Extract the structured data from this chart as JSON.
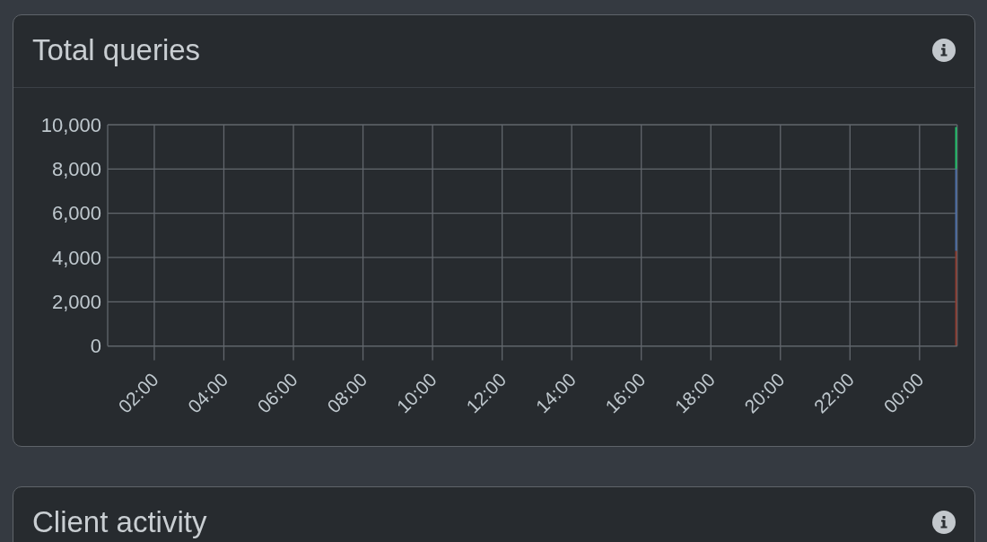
{
  "chart_data": [
    {
      "type": "bar",
      "title": "Total queries",
      "x": [
        25.05
      ],
      "series": [
        {
          "color": "#8e3a2e",
          "values": [
            4300
          ]
        },
        {
          "color": "#4b6ea8",
          "values": [
            3700
          ]
        },
        {
          "color": "#1dc36a",
          "values": [
            1900
          ]
        }
      ],
      "stacked": true,
      "xlim": [
        0.66,
        25.08
      ],
      "xticks": [
        {
          "value": 2,
          "label": "02:00"
        },
        {
          "value": 4,
          "label": "04:00"
        },
        {
          "value": 6,
          "label": "06:00"
        },
        {
          "value": 8,
          "label": "08:00"
        },
        {
          "value": 10,
          "label": "10:00"
        },
        {
          "value": 12,
          "label": "12:00"
        },
        {
          "value": 14,
          "label": "14:00"
        },
        {
          "value": 16,
          "label": "16:00"
        },
        {
          "value": 18,
          "label": "18:00"
        },
        {
          "value": 20,
          "label": "20:00"
        },
        {
          "value": 22,
          "label": "22:00"
        },
        {
          "value": 24,
          "label": "00:00"
        }
      ],
      "ylim": [
        0,
        10000
      ],
      "yticks": [
        0,
        {
          "value": 2000,
          "label": "2,000"
        },
        {
          "value": 4000,
          "label": "4,000"
        },
        {
          "value": 6000,
          "label": "6,000"
        },
        {
          "value": 8000,
          "label": "8,000"
        },
        {
          "value": 10000,
          "label": "10,000"
        }
      ],
      "grid": true
    },
    {
      "type": "other",
      "title": "Client activity"
    }
  ]
}
